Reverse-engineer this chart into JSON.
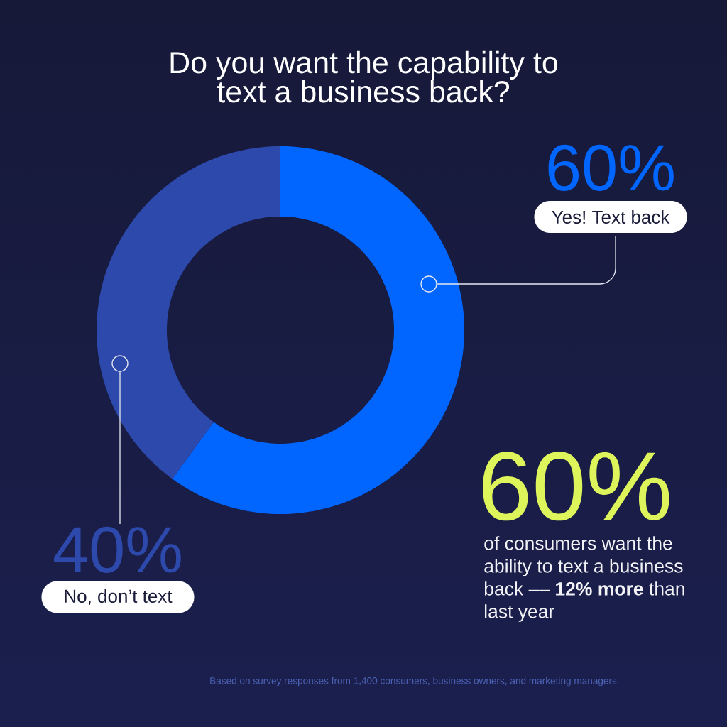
{
  "chart_data": {
    "type": "donut",
    "title": "Do you want the capability to text a business back?",
    "categories": [
      "Yes! Text back",
      "No, don’t text"
    ],
    "values": [
      60,
      40
    ],
    "colors": [
      "#0066ff",
      "#2c49ab"
    ],
    "value_labels": [
      "60%",
      "40%"
    ],
    "annotations": [
      "60%",
      "of consumers want the ability to text a business back –– **12% more** than last year",
      "Based on survey responses from 1,400 consumers, business owners, and marketing managers"
    ]
  }
}
